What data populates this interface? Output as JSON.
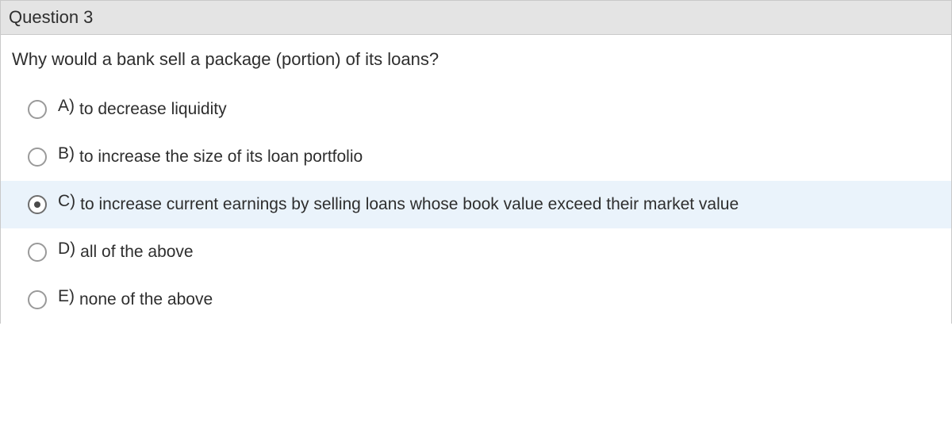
{
  "question": {
    "header": "Question 3",
    "prompt": "Why would a bank sell a package (portion) of its loans?",
    "selected_index": 2,
    "options": [
      {
        "letter": "A)",
        "text": "to decrease liquidity"
      },
      {
        "letter": "B)",
        "text": "to increase the size of its loan portfolio"
      },
      {
        "letter": "C)",
        "text": "to increase current earnings by selling loans whose book value exceed their market value"
      },
      {
        "letter": "D)",
        "text": "all of the above"
      },
      {
        "letter": "E)",
        "text": "none of the above"
      }
    ]
  },
  "colors": {
    "header_bg": "#e4e4e4",
    "selected_bg": "#eaf3fb",
    "border": "#c9c9c9",
    "radio_border": "#9a9a9a",
    "radio_dot": "#4a4a4a",
    "text": "#2e2e2e"
  }
}
